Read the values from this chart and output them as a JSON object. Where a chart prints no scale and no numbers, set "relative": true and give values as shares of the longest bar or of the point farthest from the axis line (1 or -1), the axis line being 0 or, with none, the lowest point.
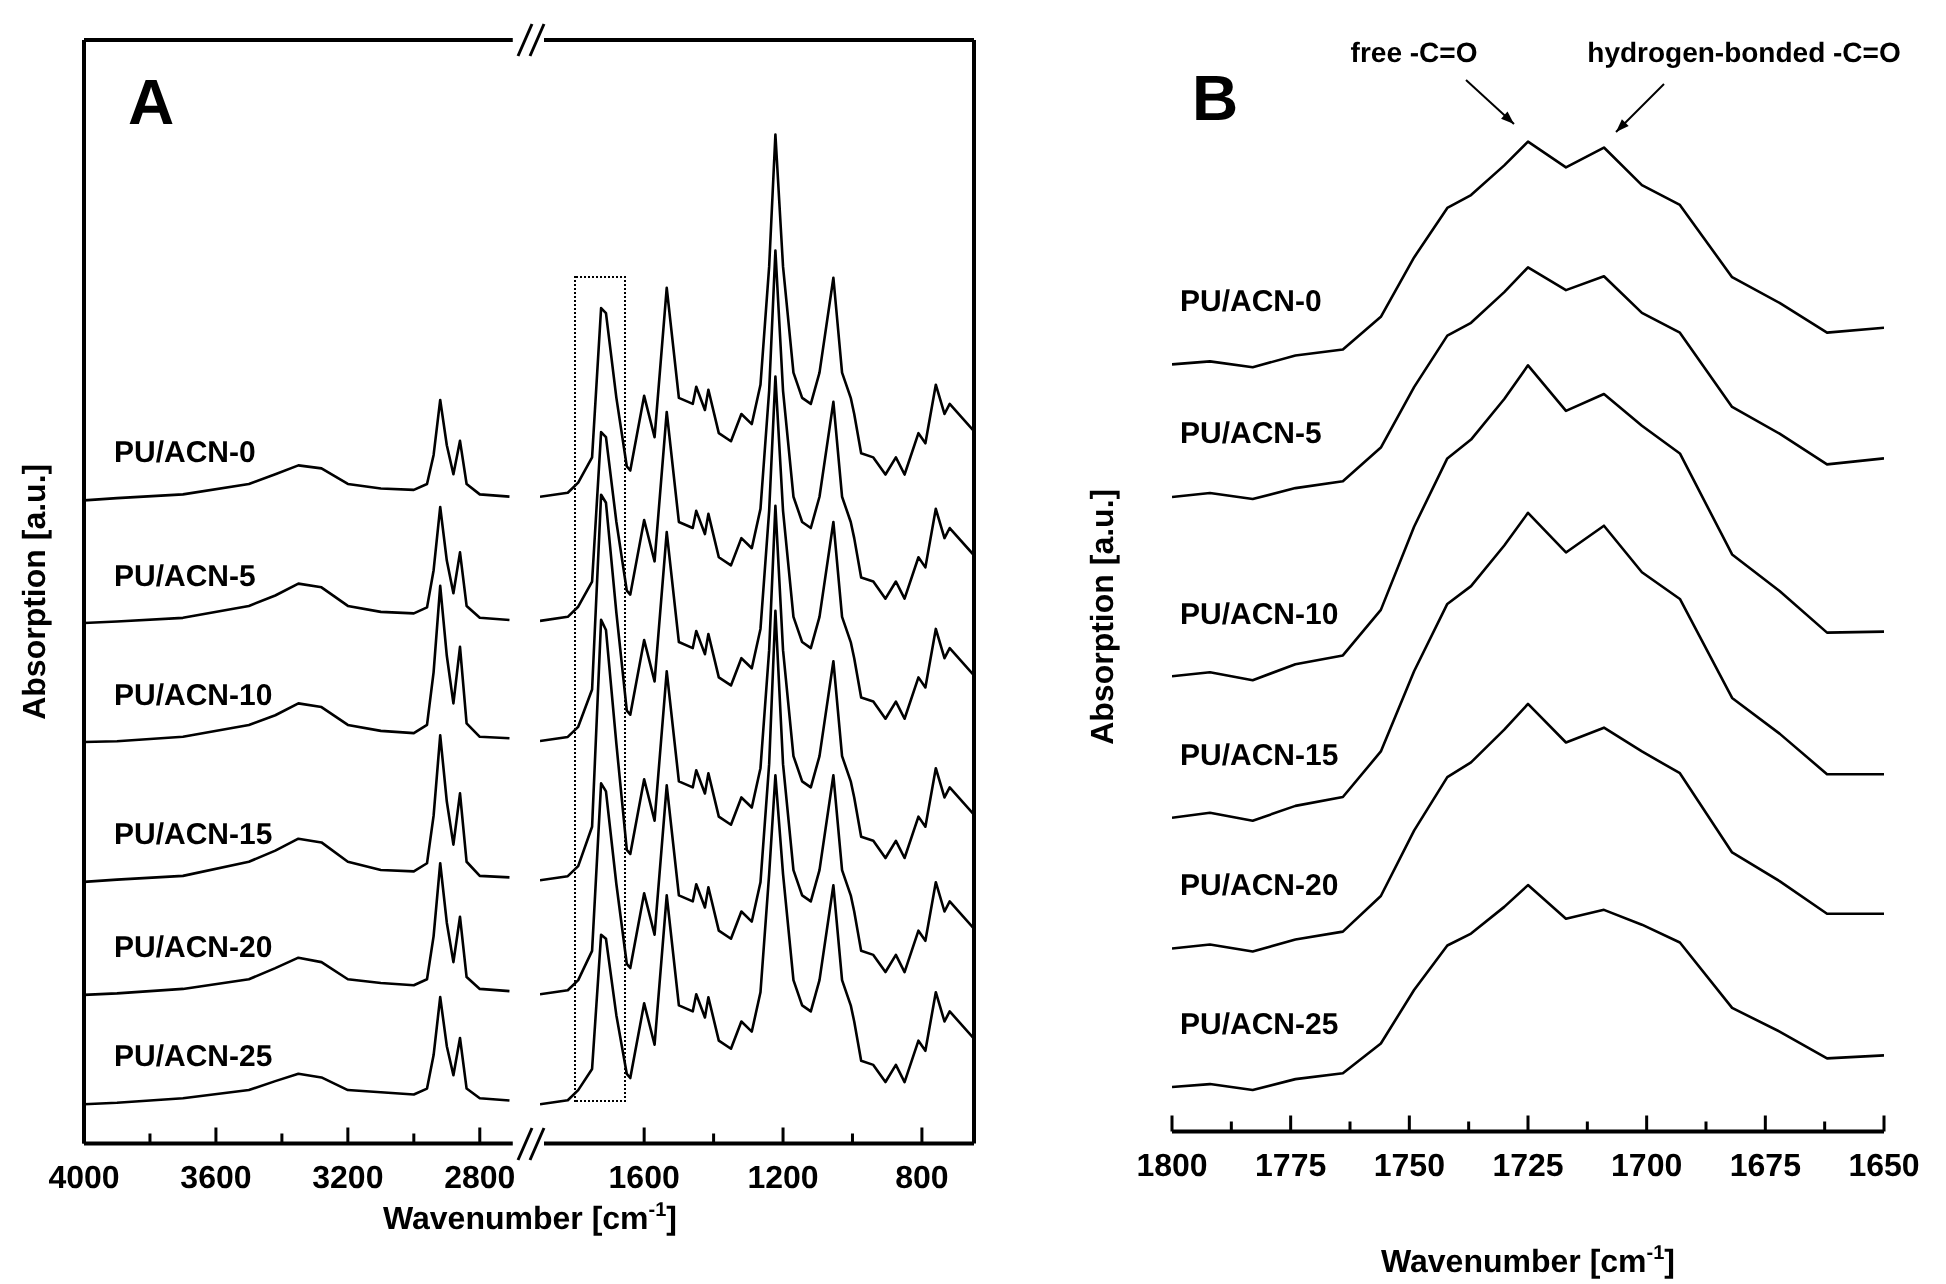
{
  "chart_data": [
    {
      "type": "line",
      "title": "A",
      "ylabel": "Absorption [a.u.]",
      "xlabel": "Wavenumber [cm$^{-1}$]",
      "relative": true,
      "tick_labels": "x",
      "x": [
        4000,
        3900,
        3700,
        3500,
        3420,
        3350,
        3280,
        3200,
        3100,
        3000,
        2960,
        2940,
        2920,
        2900,
        2880,
        2860,
        2840,
        2800,
        2710
      ],
      "xlim": [
        4000,
        2700
      ],
      "xticks": [
        4000,
        {
          "value": 3800,
          "label": null
        },
        3600,
        {
          "value": 3400,
          "label": null
        },
        3200,
        {
          "value": 3000,
          "label": null
        },
        2800
      ],
      "series": [
        {
          "name": "PU/ACN-0",
          "color": "#000000",
          "values": [
            0.865,
            0.868,
            0.873,
            0.887,
            0.9,
            0.912,
            0.908,
            0.887,
            0.881,
            0.879,
            0.887,
            0.926,
            1,
            0.939,
            0.9,
            0.945,
            0.887,
            0.873,
            0.87
          ]
        },
        {
          "name": "PU/ACN-5",
          "color": "#000000",
          "values": [
            0.7,
            0.702,
            0.707,
            0.723,
            0.737,
            0.753,
            0.748,
            0.723,
            0.715,
            0.713,
            0.721,
            0.771,
            0.856,
            0.784,
            0.74,
            0.795,
            0.723,
            0.707,
            0.704
          ]
        },
        {
          "name": "PU/ACN-10",
          "color": "#000000",
          "values": [
            0.54,
            0.541,
            0.547,
            0.563,
            0.576,
            0.592,
            0.587,
            0.563,
            0.555,
            0.552,
            0.563,
            0.634,
            0.75,
            0.656,
            0.592,
            0.668,
            0.565,
            0.547,
            0.545
          ]
        },
        {
          "name": "PU/ACN-15",
          "color": "#000000",
          "values": [
            0.352,
            0.355,
            0.36,
            0.379,
            0.394,
            0.41,
            0.405,
            0.379,
            0.368,
            0.366,
            0.377,
            0.441,
            0.549,
            0.46,
            0.402,
            0.471,
            0.379,
            0.36,
            0.358
          ]
        },
        {
          "name": "PU/ACN-20",
          "color": "#000000",
          "values": [
            0.2,
            0.202,
            0.208,
            0.221,
            0.236,
            0.25,
            0.244,
            0.221,
            0.216,
            0.213,
            0.221,
            0.279,
            0.377,
            0.297,
            0.244,
            0.305,
            0.224,
            0.208,
            0.205
          ]
        },
        {
          "name": "PU/ACN-25",
          "color": "#000000",
          "values": [
            0.053,
            0.055,
            0.061,
            0.072,
            0.084,
            0.094,
            0.089,
            0.072,
            0.069,
            0.066,
            0.074,
            0.119,
            0.197,
            0.131,
            0.092,
            0.142,
            0.074,
            0.061,
            0.058
          ]
        }
      ]
    },
    {
      "type": "line",
      "relative": true,
      "tick_labels": "x",
      "x": [
        1900,
        1820,
        1790,
        1750,
        1724,
        1710,
        1680,
        1650,
        1640,
        1600,
        1570,
        1535,
        1500,
        1460,
        1450,
        1425,
        1415,
        1385,
        1350,
        1320,
        1290,
        1265,
        1240,
        1222,
        1200,
        1170,
        1145,
        1120,
        1095,
        1055,
        1030,
        1005,
        995,
        975,
        940,
        905,
        875,
        850,
        810,
        790,
        760,
        735,
        720,
        650
      ],
      "xlim": [
        1900,
        650
      ],
      "xticks": [
        1600,
        {
          "value": 1400,
          "label": null
        },
        1200,
        {
          "value": 1000,
          "label": null
        },
        800
      ],
      "series": [
        {
          "color": "#000000",
          "values": [
            0.641,
            0.645,
            0.655,
            0.68,
            0.828,
            0.823,
            0.739,
            0.671,
            0.667,
            0.741,
            0.7,
            0.848,
            0.739,
            0.733,
            0.75,
            0.727,
            0.747,
            0.704,
            0.696,
            0.723,
            0.713,
            0.752,
            0.869,
            1,
            0.869,
            0.764,
            0.739,
            0.733,
            0.764,
            0.858,
            0.764,
            0.739,
            0.723,
            0.684,
            0.68,
            0.663,
            0.68,
            0.663,
            0.704,
            0.694,
            0.752,
            0.723,
            0.733,
            0.706
          ]
        },
        {
          "color": "#000000",
          "values": [
            0.518,
            0.522,
            0.532,
            0.557,
            0.705,
            0.7,
            0.616,
            0.548,
            0.544,
            0.618,
            0.577,
            0.725,
            0.616,
            0.61,
            0.627,
            0.604,
            0.624,
            0.581,
            0.573,
            0.6,
            0.59,
            0.629,
            0.746,
            0.885,
            0.746,
            0.641,
            0.616,
            0.61,
            0.641,
            0.735,
            0.641,
            0.616,
            0.6,
            0.561,
            0.557,
            0.54,
            0.557,
            0.54,
            0.581,
            0.571,
            0.629,
            0.6,
            0.61,
            0.583
          ]
        },
        {
          "color": "#000000",
          "values": [
            0.399,
            0.403,
            0.413,
            0.45,
            0.643,
            0.635,
            0.526,
            0.429,
            0.425,
            0.499,
            0.458,
            0.606,
            0.497,
            0.491,
            0.508,
            0.485,
            0.505,
            0.462,
            0.454,
            0.481,
            0.471,
            0.51,
            0.627,
            0.76,
            0.627,
            0.522,
            0.497,
            0.491,
            0.522,
            0.616,
            0.522,
            0.497,
            0.481,
            0.442,
            0.438,
            0.421,
            0.438,
            0.421,
            0.462,
            0.452,
            0.51,
            0.481,
            0.491,
            0.464
          ]
        },
        {
          "color": "#000000",
          "values": [
            0.261,
            0.265,
            0.275,
            0.314,
            0.519,
            0.509,
            0.396,
            0.291,
            0.287,
            0.361,
            0.32,
            0.468,
            0.359,
            0.353,
            0.37,
            0.347,
            0.367,
            0.324,
            0.316,
            0.343,
            0.333,
            0.372,
            0.489,
            0.632,
            0.489,
            0.384,
            0.359,
            0.353,
            0.384,
            0.478,
            0.384,
            0.359,
            0.343,
            0.304,
            0.3,
            0.283,
            0.3,
            0.283,
            0.324,
            0.314,
            0.372,
            0.343,
            0.353,
            0.326
          ]
        },
        {
          "color": "#000000",
          "values": [
            0.148,
            0.152,
            0.162,
            0.191,
            0.357,
            0.349,
            0.257,
            0.178,
            0.174,
            0.248,
            0.207,
            0.355,
            0.246,
            0.24,
            0.257,
            0.234,
            0.254,
            0.211,
            0.203,
            0.23,
            0.22,
            0.259,
            0.376,
            0.528,
            0.376,
            0.271,
            0.246,
            0.24,
            0.271,
            0.365,
            0.271,
            0.246,
            0.23,
            0.191,
            0.187,
            0.17,
            0.187,
            0.17,
            0.211,
            0.201,
            0.259,
            0.23,
            0.24,
            0.213
          ]
        },
        {
          "color": "#000000",
          "values": [
            0.039,
            0.043,
            0.053,
            0.074,
            0.207,
            0.203,
            0.127,
            0.069,
            0.065,
            0.139,
            0.098,
            0.246,
            0.137,
            0.131,
            0.148,
            0.125,
            0.145,
            0.102,
            0.094,
            0.121,
            0.111,
            0.15,
            0.267,
            0.365,
            0.267,
            0.162,
            0.137,
            0.131,
            0.162,
            0.256,
            0.162,
            0.137,
            0.121,
            0.082,
            0.078,
            0.061,
            0.078,
            0.061,
            0.102,
            0.092,
            0.15,
            0.121,
            0.131,
            0.104
          ]
        }
      ]
    },
    {
      "type": "line",
      "title": "B",
      "ylabel": "Absorption [a.u.]",
      "xlabel": "Wavenumber [cm$^{-1}$]",
      "relative": true,
      "tick_labels": "x",
      "x": [
        1800,
        1792,
        1783,
        1774,
        1764,
        1756,
        1749,
        1742,
        1737,
        1730,
        1725,
        1717,
        1709,
        1701,
        1693,
        1682,
        1672,
        1662,
        1650
      ],
      "xlim": [
        1800,
        1650
      ],
      "xticks": [
        1800,
        {
          "value": 1787.5,
          "label": null
        },
        1775,
        {
          "value": 1762.5,
          "label": null
        },
        1750,
        {
          "value": 1737.5,
          "label": null
        },
        1725,
        {
          "value": 1712.5,
          "label": null
        },
        1700,
        {
          "value": 1687.5,
          "label": null
        },
        1675,
        {
          "value": 1662.5,
          "label": null
        },
        1650
      ],
      "annotations": [
        "free -C=O",
        "hydrogen-bonded -C=O"
      ],
      "series": [
        {
          "name": "PU/ACN-0",
          "color": "#000000",
          "values": [
            0.775,
            0.778,
            0.772,
            0.784,
            0.79,
            0.823,
            0.883,
            0.933,
            0.946,
            0.976,
            1,
            0.974,
            0.994,
            0.956,
            0.936,
            0.863,
            0.837,
            0.807,
            0.812
          ]
        },
        {
          "name": "PU/ACN-5",
          "color": "#000000",
          "values": [
            0.641,
            0.645,
            0.639,
            0.65,
            0.657,
            0.691,
            0.752,
            0.804,
            0.817,
            0.848,
            0.873,
            0.85,
            0.864,
            0.827,
            0.807,
            0.732,
            0.705,
            0.674,
            0.68
          ]
        },
        {
          "name": "PU/ACN-10",
          "color": "#000000",
          "values": [
            0.46,
            0.464,
            0.456,
            0.472,
            0.481,
            0.527,
            0.611,
            0.68,
            0.699,
            0.74,
            0.774,
            0.728,
            0.745,
            0.713,
            0.685,
            0.583,
            0.546,
            0.504,
            0.505
          ]
        },
        {
          "name": "PU/ACN-15",
          "color": "#000000",
          "values": [
            0.317,
            0.322,
            0.314,
            0.329,
            0.338,
            0.384,
            0.465,
            0.533,
            0.551,
            0.592,
            0.625,
            0.585,
            0.612,
            0.565,
            0.538,
            0.438,
            0.402,
            0.361,
            0.361
          ]
        },
        {
          "name": "PU/ACN-20",
          "color": "#000000",
          "values": [
            0.185,
            0.189,
            0.182,
            0.194,
            0.202,
            0.238,
            0.304,
            0.358,
            0.373,
            0.406,
            0.432,
            0.393,
            0.408,
            0.384,
            0.362,
            0.282,
            0.253,
            0.22,
            0.22
          ]
        },
        {
          "name": "PU/ACN-25",
          "color": "#000000",
          "values": [
            0.045,
            0.048,
            0.042,
            0.053,
            0.059,
            0.089,
            0.143,
            0.188,
            0.2,
            0.227,
            0.249,
            0.215,
            0.224,
            0.209,
            0.191,
            0.125,
            0.101,
            0.074,
            0.077
          ]
        }
      ]
    }
  ]
}
